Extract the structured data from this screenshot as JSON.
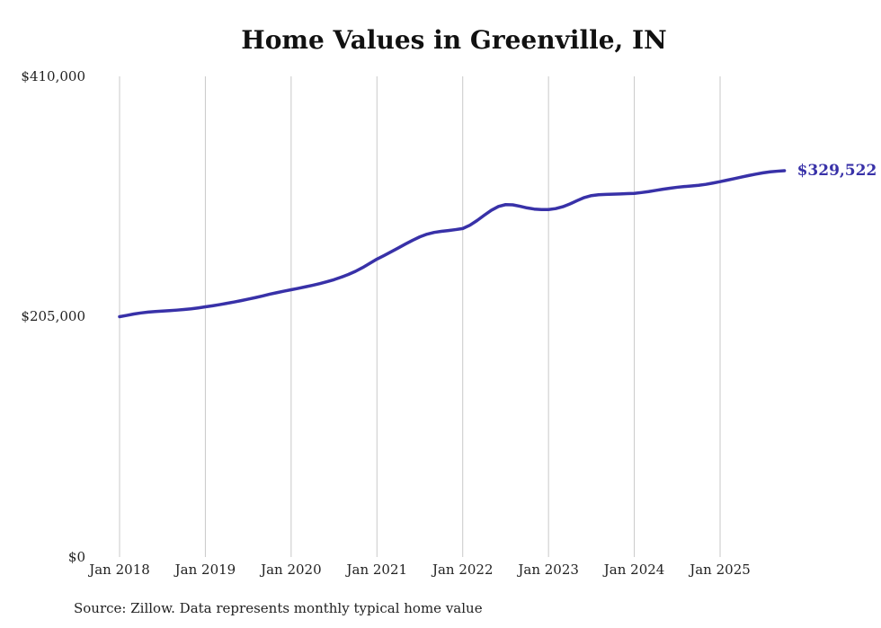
{
  "chart_data": {
    "type": "line",
    "title": "Home Values in Greenville, IN",
    "xlabel": "",
    "ylabel": "",
    "ylim": [
      0,
      410000
    ],
    "grid": "vertical-only",
    "legend": "none",
    "x_unit": "month",
    "x_start": "Jan 2018",
    "x_end": "Oct 2025",
    "x_tick_labels": [
      "Jan 2018",
      "Jan 2019",
      "Jan 2020",
      "Jan 2021",
      "Jan 2022",
      "Jan 2023",
      "Jan 2024",
      "Jan 2025"
    ],
    "y_tick_labels": [
      "$410,000",
      "$205,000",
      "$0"
    ],
    "y_tick_values": [
      410000,
      205000,
      0
    ],
    "end_label": "$329,522",
    "series": [
      {
        "name": "Typical home value (monthly)",
        "values": [
          205000,
          206100,
          207300,
          208200,
          208900,
          209400,
          209800,
          210200,
          210600,
          211100,
          211700,
          212500,
          213400,
          214300,
          215300,
          216400,
          217500,
          218700,
          220000,
          221300,
          222700,
          224200,
          225500,
          226800,
          228000,
          229200,
          230500,
          231800,
          233200,
          234800,
          236600,
          238700,
          241000,
          243700,
          246900,
          250500,
          254100,
          257200,
          260400,
          263700,
          267000,
          270200,
          273100,
          275400,
          276900,
          277800,
          278500,
          279300,
          280200,
          283000,
          287000,
          291500,
          295800,
          299000,
          300600,
          300400,
          299200,
          297800,
          296800,
          296400,
          296400,
          297200,
          298800,
          301200,
          304000,
          306600,
          308300,
          309000,
          309300,
          309500,
          309700,
          310000,
          310200,
          310900,
          311700,
          312700,
          313700,
          314600,
          315400,
          316000,
          316500,
          317100,
          317900,
          319000,
          320200,
          321500,
          322800,
          324100,
          325400,
          326600,
          327700,
          328600,
          329100,
          329522
        ]
      }
    ]
  },
  "annotations": {
    "end_value": "$329,522",
    "source": "Source: Zillow. Data represents monthly typical home value"
  },
  "colors": {
    "line": "#3831a8",
    "grid": "#c8c8c8",
    "text": "#222222",
    "title": "#111111"
  }
}
